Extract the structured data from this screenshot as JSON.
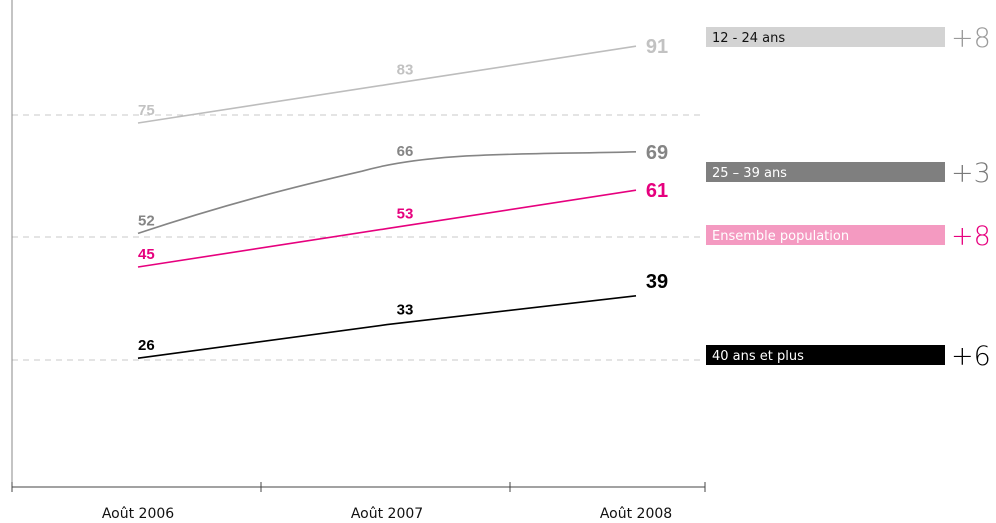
{
  "chart_data": {
    "type": "line",
    "categories": [
      "Août 2006",
      "Août 2007",
      "Août 2008"
    ],
    "ylim": [
      0,
      100
    ],
    "grid": true,
    "legend_placement": "right",
    "series": [
      {
        "name": "12 - 24 ans",
        "values": [
          75,
          83,
          91
        ],
        "color": "#bdbdbd",
        "label_color": "#c2c2c2",
        "legend_bg": "#d3d3d3",
        "legend_text_color": "#111111",
        "delta": "+8",
        "delta_color": "#9a9a9a"
      },
      {
        "name": "25 – 39 ans",
        "values": [
          52,
          66,
          69
        ],
        "color": "#858585",
        "label_color": "#858585",
        "legend_bg": "#7f7f7f",
        "legend_text_color": "#ffffff",
        "delta": "+3",
        "delta_color": "#7a7a7a"
      },
      {
        "name": "Ensemble population",
        "values": [
          45,
          53,
          61
        ],
        "color": "#e6007e",
        "label_color": "#e6007e",
        "legend_bg": "#f49ac1",
        "legend_text_color": "#ffffff",
        "delta": "+8",
        "delta_color": "#e6007e"
      },
      {
        "name": "40 ans et plus",
        "values": [
          26,
          33,
          39
        ],
        "color": "#000000",
        "label_color": "#000000",
        "legend_bg": "#000000",
        "legend_text_color": "#ffffff",
        "delta": "+6",
        "delta_color": "#000000"
      }
    ]
  }
}
